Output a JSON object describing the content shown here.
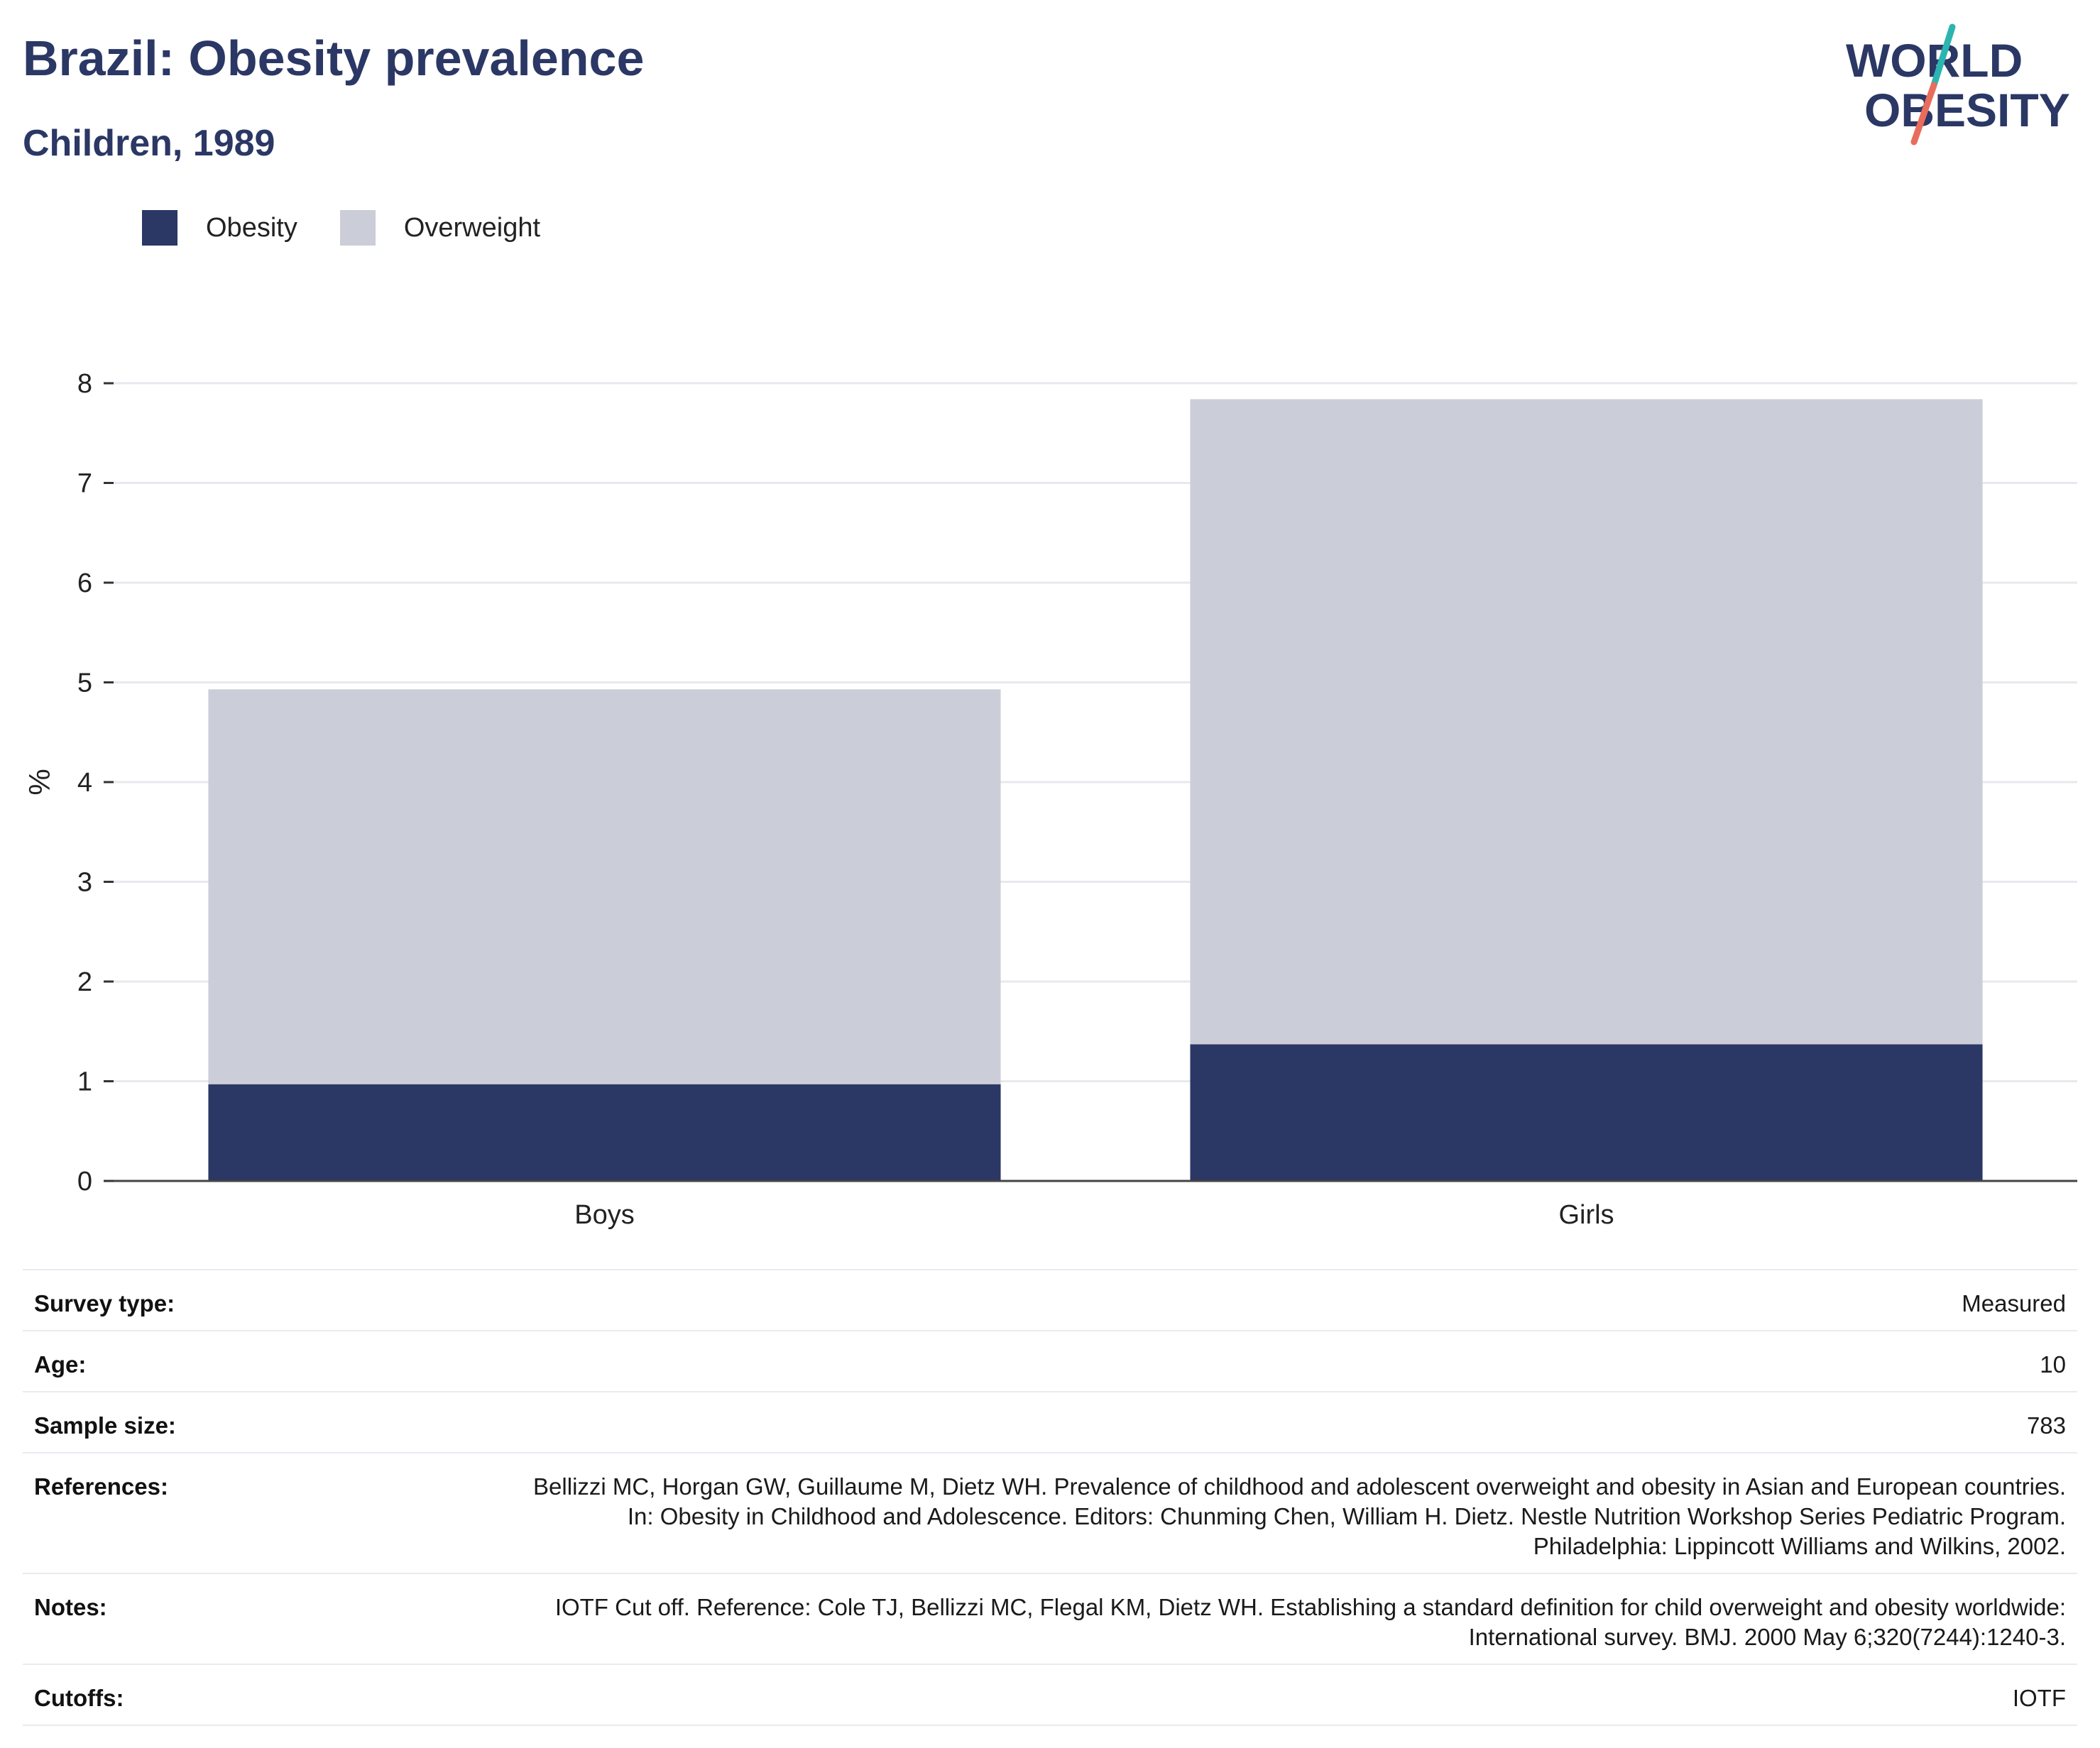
{
  "header": {
    "title": "Brazil: Obesity prevalence",
    "subtitle": "Children, 1989"
  },
  "logo": {
    "line1": "WORLD",
    "line2": "OBESITY",
    "colors": {
      "navy": "#2b3764",
      "teal": "#2bb5b0",
      "coral": "#e96d5c"
    }
  },
  "legend": [
    {
      "label": "Obesity",
      "color": "#2b3764"
    },
    {
      "label": "Overweight",
      "color": "#cbcdd8"
    }
  ],
  "chart_data": {
    "type": "bar",
    "stacked": true,
    "categories": [
      "Boys",
      "Girls"
    ],
    "series": [
      {
        "name": "Obesity",
        "color": "#2b3764",
        "values": [
          0.97,
          1.37
        ]
      },
      {
        "name": "Overweight",
        "color": "#cbcdd8",
        "values": [
          3.96,
          6.47
        ]
      }
    ],
    "totals": [
      4.93,
      7.84
    ],
    "ylabel": "%",
    "xlabel": "",
    "ylim": [
      0,
      8
    ],
    "yticks": [
      0,
      1,
      2,
      3,
      4,
      5,
      6,
      7,
      8
    ],
    "grid": true
  },
  "info": {
    "rows": [
      {
        "label": "Survey type:",
        "value": "Measured"
      },
      {
        "label": "Age:",
        "value": "10"
      },
      {
        "label": "Sample size:",
        "value": "783"
      },
      {
        "label": "References:",
        "value": "Bellizzi MC, Horgan GW, Guillaume M, Dietz WH. Prevalence of childhood and adolescent overweight and obesity in Asian and European countries. In: Obesity in Childhood and Adolescence. Editors: Chunming Chen, William H. Dietz. Nestle Nutrition Workshop Series Pediatric Program. Philadelphia: Lippincott Williams and Wilkins, 2002."
      },
      {
        "label": "Notes:",
        "value": "IOTF Cut off. Reference: Cole TJ, Bellizzi MC, Flegal KM, Dietz WH. Establishing a standard definition for child overweight and obesity worldwide: International survey. BMJ. 2000 May 6;320(7244):1240-3."
      },
      {
        "label": "Cutoffs:",
        "value": "IOTF"
      }
    ]
  }
}
